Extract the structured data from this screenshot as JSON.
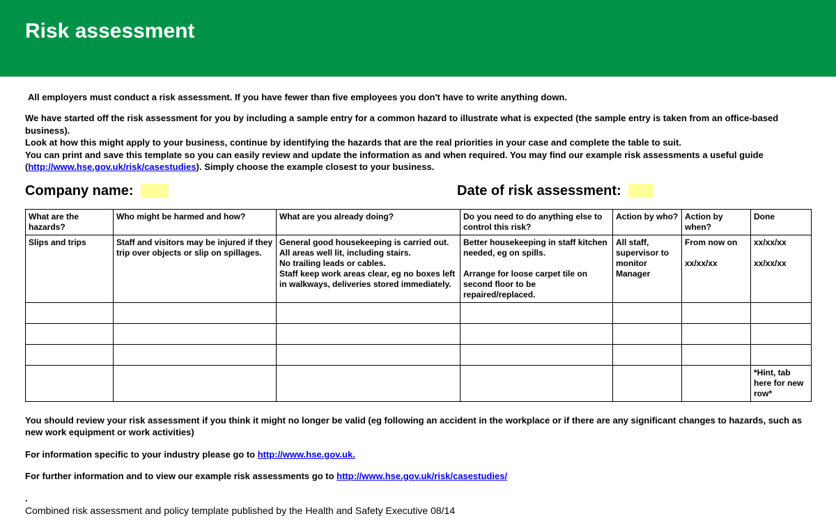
{
  "header": {
    "title": "Risk assessment"
  },
  "intro": {
    "line1": "All employers must conduct a risk assessment. If you have fewer than five employees you don't have to write anything down.",
    "para2_l1": "We have started off the risk assessment for you by including a sample entry for a common hazard to illustrate what is expected (the sample entry is taken from an office-based business).",
    "para2_l2": "Look at how this might apply to your business, continue by identifying the hazards that are the real priorities in your case and complete the table to suit.",
    "para2_l3": "You can print and save this template so you can easily review and update the information as and when required. You may find our example risk assessments a useful guide",
    "para2_l4a": "(",
    "para2_link": "http://www.hse.gov.uk/risk/casestudies",
    "para2_l4b": "). Simply choose the example closest to your business."
  },
  "meta": {
    "company_label": "Company name:",
    "company_value": "",
    "date_label": "Date of risk assessment:",
    "date_value": ""
  },
  "table": {
    "columns": {
      "hazards": "What are the hazards?",
      "who": "Who might be harmed and how?",
      "doing": "What are you already doing?",
      "else": "Do you need to do anything else to control this risk?",
      "action_who": "Action by who?",
      "action_when": "Action by when?",
      "done": "Done"
    },
    "row1": {
      "hazards": "Slips and trips",
      "who": "Staff and visitors may be injured if they trip over objects or slip on spillages.",
      "doing": "General good housekeeping is carried out.\nAll areas well lit, including stairs.\nNo trailing leads or cables.\nStaff keep work areas clear, eg no boxes left in walkways, deliveries stored immediately.",
      "else": "Better housekeeping in staff kitchen needed, eg on spills.\n\nArrange for loose carpet tile on second floor to be repaired/replaced.",
      "action_who": "All staff, supervisor to monitor\nManager",
      "action_when": "From now on\n\nxx/xx/xx",
      "done": "xx/xx/xx\n\nxx/xx/xx"
    },
    "hint": "*Hint, tab here for new row*"
  },
  "footer": {
    "review": "You should review your risk assessment if you think it might no longer be valid (eg following an accident in the workplace or if there are any significant changes to hazards, such as new work equipment or work activities)",
    "industry_pre": "For information specific to your industry please go to ",
    "industry_link": "http://www.hse.gov.uk.",
    "further_pre": "For further information and to view our example risk assessments go to ",
    "further_link": "http://www.hse.gov.uk/risk/casestudies/",
    "dot": ".",
    "pubnote": "Combined risk assessment and policy template published by the Health and Safety Executive 08/14"
  }
}
